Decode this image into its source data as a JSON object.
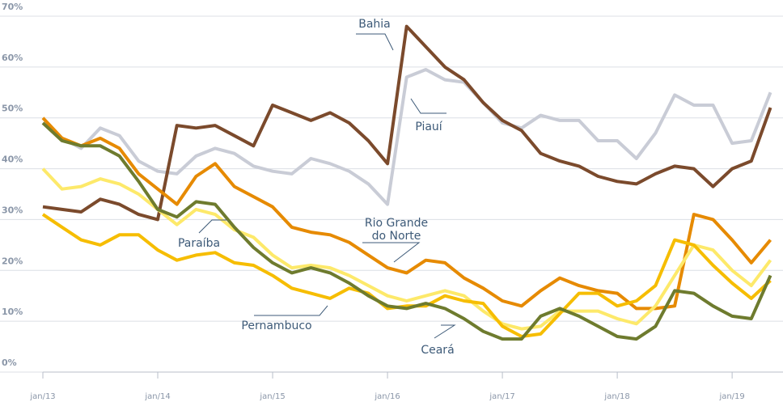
{
  "chart_data": {
    "type": "line",
    "categories": [
      "jan/13",
      null,
      null,
      null,
      null,
      null,
      "jan/14",
      null,
      null,
      null,
      null,
      null,
      "jan/15",
      null,
      null,
      null,
      null,
      null,
      "jan/16",
      null,
      null,
      null,
      null,
      null,
      "jan/17",
      null,
      null,
      null,
      null,
      null,
      "jan/18",
      null,
      null,
      null,
      null,
      null,
      "jan/19",
      null,
      null
    ],
    "ylim": [
      0,
      70
    ],
    "yticks": [
      {
        "value": 0,
        "label": "0%"
      },
      {
        "value": 10,
        "label": "10%"
      },
      {
        "value": 20,
        "label": "20%"
      },
      {
        "value": 30,
        "label": "30%"
      },
      {
        "value": 40,
        "label": "40%"
      },
      {
        "value": 50,
        "label": "50%"
      },
      {
        "value": 60,
        "label": "60%"
      },
      {
        "value": 70,
        "label": "70%"
      }
    ],
    "grid": true,
    "series": [
      {
        "name": "Piauí",
        "color": "#c9ccd6",
        "values": [
          49,
          46,
          44,
          48,
          46.5,
          41.5,
          39.5,
          39,
          42.5,
          44,
          43,
          40.5,
          39.5,
          39,
          42,
          41,
          39.5,
          37,
          33,
          58,
          59.5,
          57.5,
          57,
          53,
          49,
          48,
          50.5,
          49.5,
          49.5,
          45.5,
          45.5,
          42,
          47,
          54.5,
          52.5,
          52.5,
          45,
          45.5,
          55
        ]
      },
      {
        "name": "Bahia",
        "color": "#7b4a2c",
        "values": [
          32.5,
          32,
          31.5,
          34,
          33,
          31,
          30,
          48.5,
          48,
          48.5,
          46.5,
          44.5,
          52.5,
          51,
          49.5,
          51,
          49,
          45.5,
          41,
          68,
          64,
          60,
          57.5,
          53,
          49.5,
          47.5,
          43,
          41.5,
          40.5,
          38.5,
          37.5,
          37,
          39,
          40.5,
          40,
          36.5,
          40,
          41.5,
          52
        ]
      },
      {
        "name": "Rio Grande do Norte",
        "color": "#e68a00",
        "values": [
          50,
          46,
          44.5,
          46,
          44,
          39,
          36,
          33,
          38.5,
          41,
          36.5,
          34.5,
          32.5,
          28.5,
          27.5,
          27,
          25.5,
          23,
          20.5,
          19.5,
          22,
          21.5,
          18.5,
          16.5,
          14,
          13,
          16,
          18.5,
          17,
          16,
          15.5,
          12.5,
          12.5,
          13,
          31,
          30,
          26,
          21.5,
          26
        ]
      },
      {
        "name": "Paraíba",
        "color": "#fde96a",
        "values": [
          40,
          36,
          36.5,
          38,
          37,
          35,
          32,
          29,
          32,
          31,
          28,
          26.5,
          23,
          20.5,
          21,
          20.5,
          19,
          17,
          15,
          14,
          15,
          16,
          15,
          12,
          9.5,
          8.5,
          9,
          12,
          12,
          12,
          10.5,
          9.5,
          13,
          19,
          25,
          24,
          20,
          17,
          22
        ]
      },
      {
        "name": "Pernambuco",
        "color": "#f6bd00",
        "values": [
          31,
          28.5,
          26,
          25,
          27,
          27,
          24,
          22,
          23,
          23.5,
          21.5,
          21,
          19,
          16.5,
          15.5,
          14.5,
          16.5,
          15.5,
          12.5,
          13,
          13,
          15,
          14,
          13.5,
          9,
          7,
          7.5,
          11.5,
          15.5,
          15.5,
          13,
          14,
          17,
          26,
          25,
          21,
          17.5,
          14.5,
          18
        ]
      },
      {
        "name": "Ceará",
        "color": "#6e7b2e",
        "values": [
          49,
          45.5,
          44.5,
          44.5,
          42.5,
          37.5,
          32,
          30.5,
          33.5,
          33,
          28.5,
          24.5,
          21.5,
          19.5,
          20.5,
          19.5,
          17.5,
          15,
          13,
          12.5,
          13.5,
          12.5,
          10.5,
          8,
          6.5,
          6.5,
          11,
          12.5,
          11,
          9,
          7,
          6.5,
          9,
          16,
          15.5,
          13,
          11,
          10.5,
          19
        ]
      }
    ]
  }
}
